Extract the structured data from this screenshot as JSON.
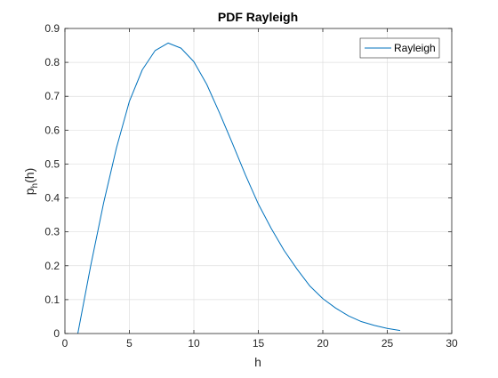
{
  "chart_data": {
    "type": "line",
    "title": "PDF Rayleigh",
    "xlabel": "h",
    "ylabel": "p_h(h)",
    "xlim": [
      0,
      30
    ],
    "ylim": [
      0,
      0.9
    ],
    "xticks": [
      0,
      5,
      10,
      15,
      20,
      25,
      30
    ],
    "yticks": [
      0,
      0.1,
      0.2,
      0.3,
      0.4,
      0.5,
      0.6,
      0.7,
      0.8,
      0.9
    ],
    "xtick_labels": [
      "0",
      "5",
      "10",
      "15",
      "20",
      "25",
      "30"
    ],
    "ytick_labels": [
      "0",
      "0.1",
      "0.2",
      "0.3",
      "0.4",
      "0.5",
      "0.6",
      "0.7",
      "0.8",
      "0.9"
    ],
    "grid": true,
    "legend": {
      "position": "top-right"
    },
    "series": [
      {
        "name": "Rayleigh",
        "color": "#0072BD",
        "x": [
          1,
          2,
          3,
          4,
          5,
          6,
          7,
          8,
          9,
          10,
          11,
          12,
          13,
          14,
          15,
          16,
          17,
          18,
          19,
          20,
          21,
          22,
          23,
          24,
          25,
          26
        ],
        "y": [
          0.0,
          0.2,
          0.385,
          0.548,
          0.685,
          0.778,
          0.835,
          0.857,
          0.842,
          0.802,
          0.735,
          0.65,
          0.56,
          0.468,
          0.382,
          0.31,
          0.245,
          0.19,
          0.14,
          0.103,
          0.075,
          0.052,
          0.035,
          0.024,
          0.015,
          0.009
        ]
      }
    ]
  }
}
